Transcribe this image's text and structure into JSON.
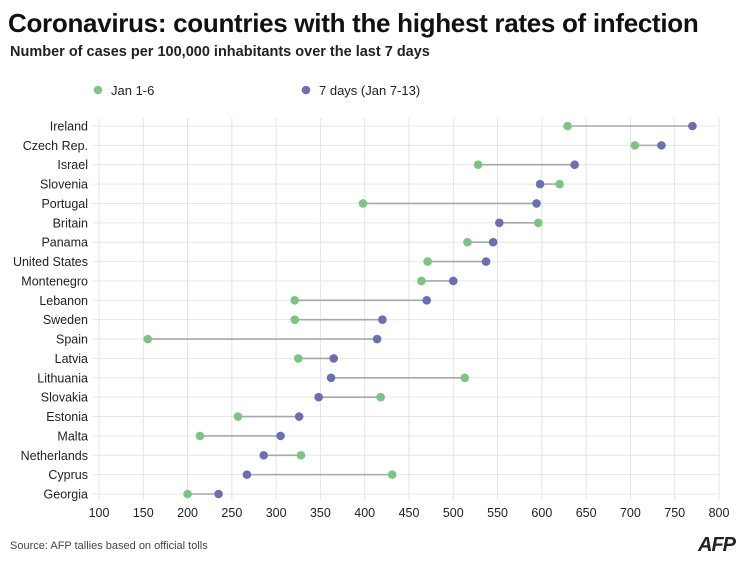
{
  "chart_data": {
    "type": "dumbbell",
    "title": "Coronavirus: countries with the highest rates of infection",
    "subtitle": "Number of cases per 100,000 inhabitants over the last 7 days",
    "source": "Source: AFP tallies based on official tolls",
    "logo": "AFP",
    "xlim": [
      100,
      800
    ],
    "xticks": [
      100,
      150,
      200,
      250,
      300,
      350,
      400,
      450,
      500,
      550,
      600,
      650,
      700,
      750,
      800
    ],
    "grid": true,
    "legend_position": "top",
    "categories": [
      "Ireland",
      "Czech Rep.",
      "Israel",
      "Slovenia",
      "Portugal",
      "Britain",
      "Panama",
      "United States",
      "Montenegro",
      "Lebanon",
      "Sweden",
      "Spain",
      "Latvia",
      "Lithuania",
      "Slovakia",
      "Estonia",
      "Malta",
      "Netherlands",
      "Cyprus",
      "Georgia"
    ],
    "series": [
      {
        "name": "Jan 1-6",
        "color": "#7dc383",
        "values": [
          629,
          705,
          528,
          620,
          398,
          596,
          516,
          471,
          464,
          321,
          321,
          155,
          325,
          513,
          418,
          257,
          214,
          328,
          431,
          200
        ]
      },
      {
        "name": "7 days (Jan 7-13)",
        "color": "#6b6fb0",
        "values": [
          770,
          735,
          637,
          598,
          594,
          552,
          545,
          537,
          500,
          470,
          420,
          414,
          365,
          362,
          348,
          326,
          305,
          286,
          267,
          235
        ]
      }
    ]
  }
}
